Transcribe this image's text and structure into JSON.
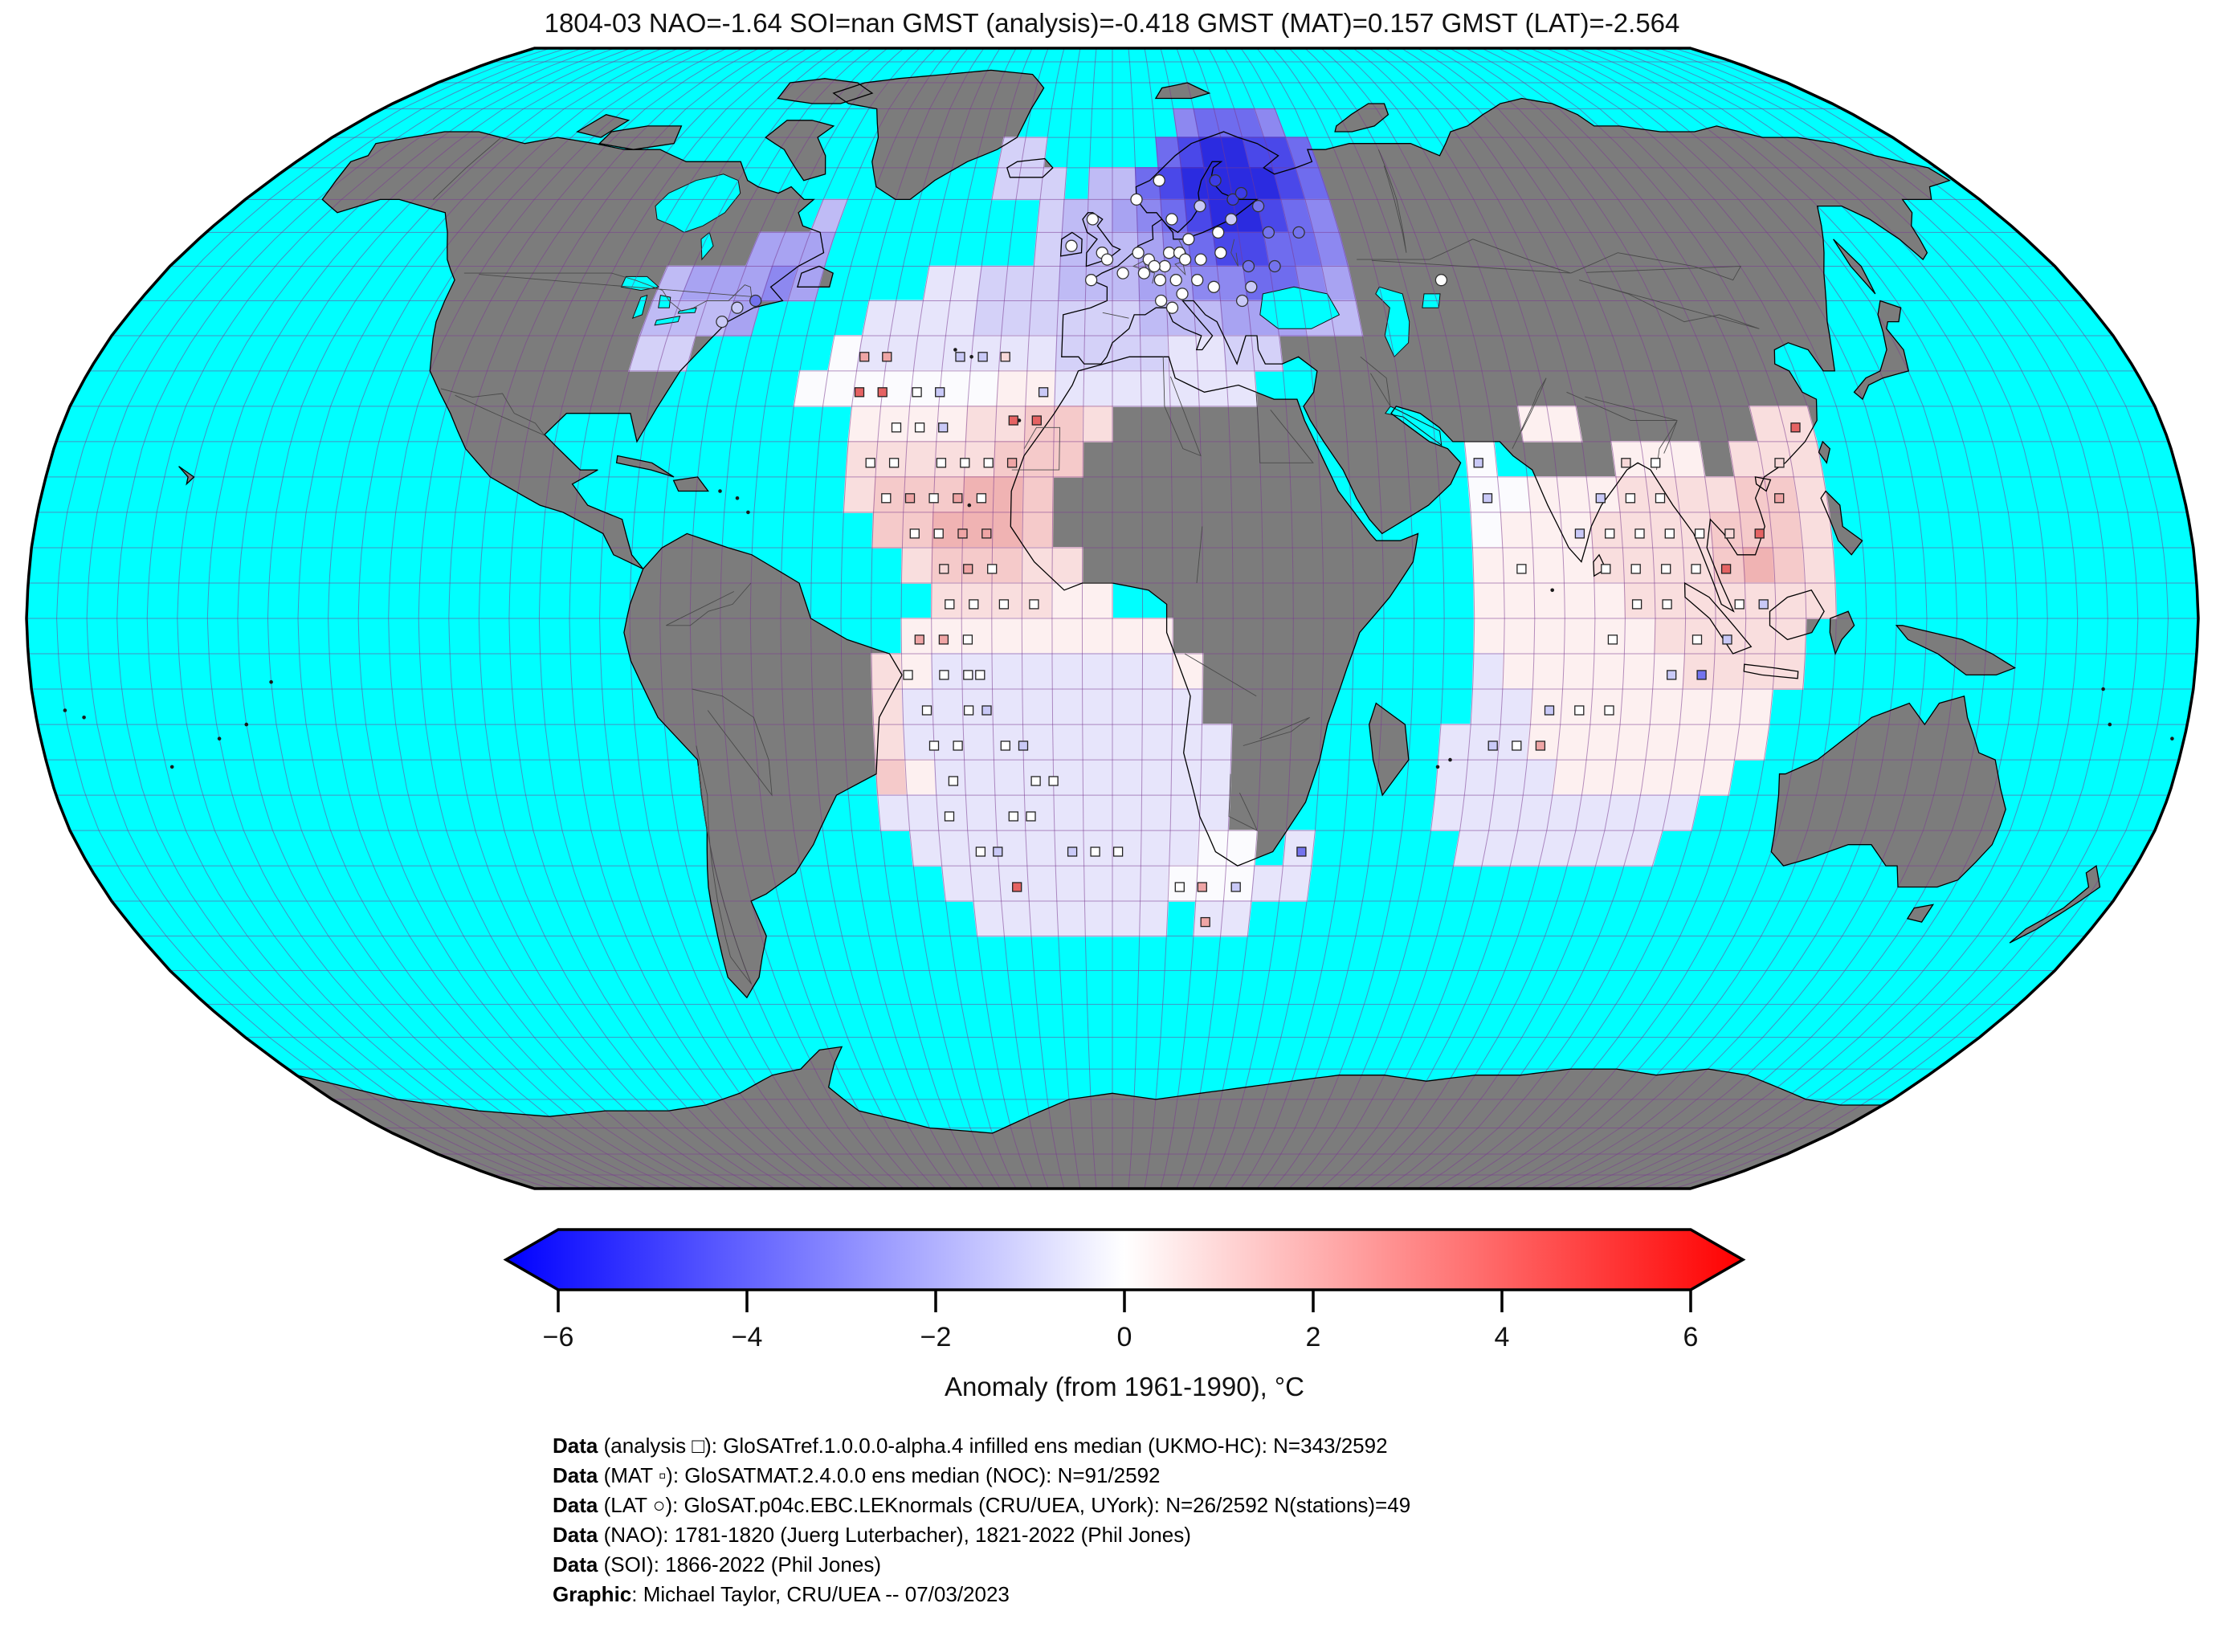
{
  "title": "1804-03 NAO=-1.64 SOI=nan GMST (analysis)=-0.418 GMST (MAT)=0.157 GMST (LAT)=-2.564",
  "colorbar": {
    "label": "Anomaly (from 1961-1990), °C",
    "ticks": [
      "−6",
      "−4",
      "−2",
      "0",
      "2",
      "4",
      "6"
    ],
    "tick_values": [
      -6,
      -4,
      -2,
      0,
      2,
      4,
      6
    ],
    "min": -6,
    "max": 6,
    "left_color": "#0000ff",
    "mid_color": "#ffffff",
    "right_color": "#ff0000"
  },
  "attribution": [
    {
      "bold": "Data",
      "rest": " (analysis □): GloSATref.1.0.0.0-alpha.4 infilled ens median (UKMO-HC): N=343/2592"
    },
    {
      "bold": "Data",
      "rest": " (MAT ▫): GloSATMAT.2.4.0.0 ens median (NOC): N=91/2592"
    },
    {
      "bold": "Data",
      "rest": " (LAT ○): GloSAT.p04c.EBC.LEKnormals (CRU/UEA, UYork): N=26/2592 N(stations)=49"
    },
    {
      "bold": "Data",
      "rest": " (NAO): 1781-1820 (Juerg Luterbacher), 1821-2022 (Phil Jones)"
    },
    {
      "bold": "Data",
      "rest": " (SOI): 1866-2022 (Phil Jones)"
    },
    {
      "bold": "Graphic",
      "rest": ": Michael Taylor, CRU/UEA -- 07/03/2023"
    }
  ],
  "chart_data": {
    "type": "heatmap",
    "projection": "robinson",
    "period": "1804-03",
    "stats": {
      "NAO": -1.64,
      "SOI": "nan",
      "GMST_analysis": -0.418,
      "GMST_MAT": 0.157,
      "GMST_LAT": -2.564
    },
    "anomaly_units": "°C",
    "baseline": "1961-1990",
    "ocean_color": "#00ffff",
    "land_color": "#7c7c7c",
    "grid_color": "#7a3b8f",
    "coast_color": "#000000",
    "palette": {
      "A": "#2b2be0",
      "B": "#4a48e9",
      "C": "#6f6cee",
      "D": "#8d88f0",
      "E": "#a8a3f2",
      "F": "#bfbbf5",
      "G": "#d4d1f8",
      "H": "#e7e5fb",
      "I": "#fbfbfe",
      "J": "#fdf0f0",
      "K": "#f9dede",
      "L": "#f5caca",
      "M": "#f0b3b3",
      "N": "#ea9898"
    },
    "palette_anomaly_values": {
      "A": -5.0,
      "B": -4.0,
      "C": -3.0,
      "D": -2.2,
      "E": -1.6,
      "F": -1.1,
      "G": -0.7,
      "H": -0.35,
      "I": 0.0,
      "J": 0.25,
      "K": 0.5,
      "L": 0.8,
      "M": 1.1,
      "N": 1.5
    },
    "cell_size_deg": 5,
    "cells": [
      [
        75,
        15,
        "DCCCD"
      ],
      [
        70,
        -25,
        "GG.....CBAABBC"
      ],
      [
        65,
        -25,
        "GGG.FFCBAAAABC"
      ],
      [
        60,
        -15,
        "GFFEDCBAABCD"
      ],
      [
        55,
        -15,
        "GFFFEDCBBCCD"
      ],
      [
        50,
        -35,
        "HHGGGFFFEEDDCCDE"
      ],
      [
        45,
        -45,
        "HHHHGGGGGGFFFEEEFF"
      ],
      [
        40,
        -50,
        "IHHHHHHHGGGGHHGG"
      ],
      [
        35,
        -55,
        "IIIIIIIJJHHHHHHH"
      ],
      [
        30,
        -45,
        "JJJJKKLLK"
      ],
      [
        25,
        -45,
        "KKKKKLLL"
      ],
      [
        20,
        -45,
        "KLLLMML"
      ],
      [
        15,
        -40,
        "LLMMML"
      ],
      [
        10,
        -35,
        "KLLLKK"
      ],
      [
        5,
        -30,
        "KKKKJJ"
      ],
      [
        0,
        -35,
        "JJJJJJJJJ"
      ],
      [
        -5,
        -40,
        "KJHHHHHHHHJ"
      ],
      [
        -10,
        -40,
        "KHHHHHHHHHH"
      ],
      [
        -15,
        -40,
        "KHHHHHHHHHHH"
      ],
      [
        -20,
        -40,
        "LJHHHHHHHHHH"
      ],
      [
        -25,
        -40,
        "HHHHHHHHHHHH"
      ],
      [
        -30,
        -35,
        "HHHHHHHHHHII.H"
      ],
      [
        -35,
        -30,
        "HHHHHHHHIIIHH"
      ],
      [
        -40,
        -25,
        "HHHHHHH"
      ],
      [
        -40,
        15,
        "HH"
      ],
      [
        60,
        -60,
        "F"
      ],
      [
        55,
        -70,
        "EEE"
      ],
      [
        50,
        -85,
        "FEEEDE"
      ],
      [
        45,
        -85,
        "FFFE"
      ],
      [
        40,
        -85,
        "GG"
      ],
      [
        30,
        70,
        "JJ"
      ],
      [
        30,
        110,
        "KK"
      ],
      [
        25,
        60,
        "I....JJJ.KKK"
      ],
      [
        20,
        60,
        "IIJJJKKKKLLK"
      ],
      [
        15,
        60,
        "IJJJKKKKLLLK"
      ],
      [
        10,
        60,
        "JJJJKKKKLMLK"
      ],
      [
        5,
        60,
        "JJJJJKKKKKKK"
      ],
      [
        0,
        60,
        "JJJJJJKKKKK"
      ],
      [
        -5,
        60,
        "HJJJJJJKKKK"
      ],
      [
        -10,
        60,
        "HHJJJJJJJJ"
      ],
      [
        -15,
        55,
        "HHHJJJJJJJJ"
      ],
      [
        -20,
        55,
        "HHHHJJJJJJ"
      ],
      [
        -25,
        55,
        "HHHHHHHHH"
      ],
      [
        -30,
        60,
        "HHHHHHH"
      ]
    ],
    "marker_fills": {
      "w": "#ffffff",
      "lp": "#f7d8d8",
      "p": "#efa5a5",
      "r": "#e56363",
      "lb": "#c9c9f7",
      "b": "#7473ee",
      "db": "#3c3ce6"
    },
    "markers": [
      [
        "s",
        -44,
        37,
        "p"
      ],
      [
        "s",
        -40,
        37,
        "p"
      ],
      [
        "s",
        -27,
        37,
        "lb"
      ],
      [
        "s",
        -23,
        37,
        "lb"
      ],
      [
        "s",
        -19,
        37,
        "lp"
      ],
      [
        "s",
        -44,
        32,
        "r"
      ],
      [
        "s",
        -40,
        32,
        "r"
      ],
      [
        "s",
        -34,
        32,
        "w"
      ],
      [
        "s",
        -30,
        32,
        "lb"
      ],
      [
        "s",
        -12,
        32,
        "lb"
      ],
      [
        "s",
        -37,
        27,
        "w"
      ],
      [
        "s",
        -33,
        27,
        "w"
      ],
      [
        "s",
        -29,
        27,
        "lb"
      ],
      [
        "s",
        -17,
        28,
        "r"
      ],
      [
        "s",
        -13,
        28,
        "r"
      ],
      [
        "s",
        -41,
        22,
        "w"
      ],
      [
        "s",
        -37,
        22,
        "w"
      ],
      [
        "s",
        -29,
        22,
        "w"
      ],
      [
        "s",
        -25,
        22,
        "w"
      ],
      [
        "s",
        -21,
        22,
        "w"
      ],
      [
        "s",
        -17,
        22,
        "p"
      ],
      [
        "s",
        -38,
        17,
        "w"
      ],
      [
        "s",
        -34,
        17,
        "p"
      ],
      [
        "s",
        -30,
        17,
        "w"
      ],
      [
        "s",
        -26,
        17,
        "p"
      ],
      [
        "s",
        -22,
        17,
        "w"
      ],
      [
        "s",
        -33,
        12,
        "w"
      ],
      [
        "s",
        -29,
        12,
        "w"
      ],
      [
        "s",
        -25,
        12,
        "p"
      ],
      [
        "s",
        -21,
        12,
        "p"
      ],
      [
        "s",
        -28,
        7,
        "lp"
      ],
      [
        "s",
        -24,
        7,
        "p"
      ],
      [
        "s",
        -20,
        7,
        "w"
      ],
      [
        "s",
        -27,
        2,
        "w"
      ],
      [
        "s",
        -23,
        2,
        "w"
      ],
      [
        "s",
        -18,
        2,
        "w"
      ],
      [
        "s",
        -13,
        2,
        "w"
      ],
      [
        "s",
        -32,
        -3,
        "p"
      ],
      [
        "s",
        -28,
        -3,
        "p"
      ],
      [
        "s",
        -24,
        -3,
        "w"
      ],
      [
        "s",
        -34,
        -8,
        "w"
      ],
      [
        "s",
        -28,
        -8,
        "w"
      ],
      [
        "s",
        -24,
        -8,
        "w"
      ],
      [
        "s",
        -22,
        -8,
        "w"
      ],
      [
        "s",
        -31,
        -13,
        "w"
      ],
      [
        "s",
        -24,
        -13,
        "w"
      ],
      [
        "s",
        -21,
        -13,
        "lb"
      ],
      [
        "s",
        -30,
        -18,
        "w"
      ],
      [
        "s",
        -26,
        -18,
        "w"
      ],
      [
        "s",
        -18,
        -18,
        "w"
      ],
      [
        "s",
        -15,
        -18,
        "lb"
      ],
      [
        "s",
        -27,
        -23,
        "w"
      ],
      [
        "s",
        -13,
        -23,
        "w"
      ],
      [
        "s",
        -10,
        -23,
        "w"
      ],
      [
        "s",
        -28,
        -28,
        "w"
      ],
      [
        "s",
        -17,
        -28,
        "w"
      ],
      [
        "s",
        -14,
        -28,
        "w"
      ],
      [
        "s",
        -23,
        -33,
        "w"
      ],
      [
        "s",
        -20,
        -33,
        "lb"
      ],
      [
        "s",
        -7,
        -33,
        "lb"
      ],
      [
        "s",
        -3,
        -33,
        "w"
      ],
      [
        "s",
        1,
        -33,
        "w"
      ],
      [
        "s",
        33,
        -33,
        "b"
      ],
      [
        "s",
        -17,
        -38,
        "r"
      ],
      [
        "s",
        12,
        -38,
        "w"
      ],
      [
        "s",
        16,
        -38,
        "p"
      ],
      [
        "s",
        22,
        -38,
        "lb"
      ],
      [
        "s",
        17,
        -43,
        "p"
      ],
      [
        "s",
        62,
        22,
        "lb"
      ],
      [
        "s",
        87,
        22,
        "lp"
      ],
      [
        "s",
        92,
        22,
        "w"
      ],
      [
        "s",
        113,
        22,
        "lp"
      ],
      [
        "s",
        117,
        27,
        "r"
      ],
      [
        "s",
        63,
        17,
        "lb"
      ],
      [
        "s",
        82,
        17,
        "lb"
      ],
      [
        "s",
        87,
        17,
        "w"
      ],
      [
        "s",
        92,
        17,
        "w"
      ],
      [
        "s",
        112,
        17,
        "p"
      ],
      [
        "s",
        78,
        12,
        "lb"
      ],
      [
        "s",
        83,
        12,
        "w"
      ],
      [
        "s",
        88,
        12,
        "w"
      ],
      [
        "s",
        93,
        12,
        "w"
      ],
      [
        "s",
        98,
        12,
        "w"
      ],
      [
        "s",
        103,
        12,
        "lp"
      ],
      [
        "s",
        108,
        12,
        "r"
      ],
      [
        "s",
        68,
        7,
        "w"
      ],
      [
        "s",
        82,
        7,
        "w"
      ],
      [
        "s",
        87,
        7,
        "w"
      ],
      [
        "s",
        92,
        7,
        "w"
      ],
      [
        "s",
        97,
        7,
        "w"
      ],
      [
        "s",
        102,
        7,
        "r"
      ],
      [
        "s",
        87,
        2,
        "w"
      ],
      [
        "s",
        92,
        2,
        "w"
      ],
      [
        "s",
        104,
        2,
        "w"
      ],
      [
        "s",
        108,
        2,
        "lb"
      ],
      [
        "s",
        83,
        -3,
        "w"
      ],
      [
        "s",
        97,
        -3,
        "w"
      ],
      [
        "s",
        102,
        -3,
        "lb"
      ],
      [
        "s",
        93,
        -8,
        "lb"
      ],
      [
        "s",
        98,
        -8,
        "b"
      ],
      [
        "s",
        73,
        -13,
        "lb"
      ],
      [
        "s",
        78,
        -13,
        "w"
      ],
      [
        "s",
        83,
        -13,
        "w"
      ],
      [
        "s",
        64,
        -18,
        "lb"
      ],
      [
        "s",
        68,
        -18,
        "w"
      ],
      [
        "s",
        72,
        -18,
        "p"
      ],
      [
        "c",
        -8,
        53,
        "w"
      ],
      [
        "c",
        -4,
        57,
        "w"
      ],
      [
        "c",
        -2,
        52,
        "w"
      ],
      [
        "c",
        -1,
        51,
        "w"
      ],
      [
        "c",
        2,
        49,
        "w"
      ],
      [
        "c",
        -4,
        48,
        "w"
      ],
      [
        "c",
        5,
        52,
        "w"
      ],
      [
        "c",
        7,
        51,
        "w"
      ],
      [
        "c",
        9,
        48,
        "w"
      ],
      [
        "c",
        10,
        50,
        "w"
      ],
      [
        "c",
        11,
        52,
        "w"
      ],
      [
        "c",
        13,
        52,
        "w"
      ],
      [
        "c",
        14,
        51,
        "w"
      ],
      [
        "c",
        12,
        48,
        "w"
      ],
      [
        "c",
        16,
        48,
        "w"
      ],
      [
        "c",
        19,
        47,
        "w"
      ],
      [
        "c",
        21,
        52,
        "w"
      ],
      [
        "c",
        17,
        51,
        "w"
      ],
      [
        "c",
        9,
        45,
        "w"
      ],
      [
        "c",
        11,
        44,
        "w"
      ],
      [
        "c",
        13,
        46,
        "w"
      ],
      [
        "c",
        8,
        50,
        "w"
      ],
      [
        "c",
        6,
        49,
        "w"
      ],
      [
        "c",
        15,
        54,
        "w"
      ],
      [
        "c",
        18,
        59,
        "lb"
      ],
      [
        "c",
        25,
        60,
        "db"
      ],
      [
        "c",
        22,
        63,
        "db"
      ],
      [
        "c",
        27,
        61,
        "db"
      ],
      [
        "c",
        30,
        59,
        "b"
      ],
      [
        "c",
        24,
        57,
        "lb"
      ],
      [
        "c",
        21,
        55,
        "w"
      ],
      [
        "c",
        31,
        55,
        "b"
      ],
      [
        "c",
        37,
        55,
        "b"
      ],
      [
        "c",
        26,
        50,
        "b"
      ],
      [
        "c",
        31,
        50,
        "b"
      ],
      [
        "c",
        10,
        63,
        "w"
      ],
      [
        "c",
        5,
        60,
        "w"
      ],
      [
        "c",
        12,
        57,
        "w"
      ],
      [
        "c",
        24,
        45,
        "lb"
      ],
      [
        "c",
        26,
        47,
        "lb"
      ],
      [
        "c",
        -71,
        42,
        "lb"
      ],
      [
        "c",
        -69,
        44,
        "lb"
      ],
      [
        "c",
        -66,
        45,
        "b"
      ],
      [
        "c",
        62,
        48,
        "w"
      ]
    ]
  }
}
